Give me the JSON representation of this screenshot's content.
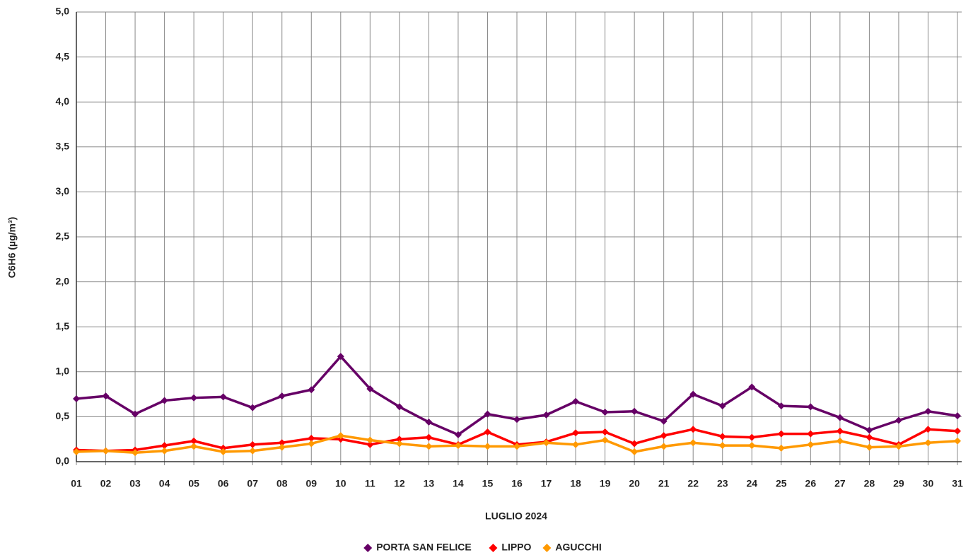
{
  "chart_data": {
    "type": "line",
    "x_label": "LUGLIO 2024",
    "y_label": "C6H6 (µg/m³)",
    "categories": [
      "01",
      "02",
      "03",
      "04",
      "05",
      "06",
      "07",
      "08",
      "09",
      "10",
      "11",
      "12",
      "13",
      "14",
      "15",
      "16",
      "17",
      "18",
      "19",
      "20",
      "21",
      "22",
      "23",
      "24",
      "25",
      "26",
      "27",
      "28",
      "29",
      "30",
      "31"
    ],
    "series": [
      {
        "name": "PORTA SAN FELICE",
        "color": "#660066",
        "values": [
          0.7,
          0.73,
          0.53,
          0.68,
          0.71,
          0.72,
          0.6,
          0.73,
          0.8,
          1.17,
          0.81,
          0.61,
          0.44,
          0.3,
          0.53,
          0.47,
          0.52,
          0.67,
          0.55,
          0.56,
          0.45,
          0.75,
          0.62,
          0.83,
          0.62,
          0.61,
          0.49,
          0.35,
          0.46,
          0.56,
          0.51
        ]
      },
      {
        "name": "LIPPO",
        "color": "#ff0000",
        "values": [
          0.13,
          0.12,
          0.13,
          0.18,
          0.23,
          0.15,
          0.19,
          0.21,
          0.26,
          0.25,
          0.19,
          0.25,
          0.27,
          0.19,
          0.33,
          0.19,
          0.22,
          0.32,
          0.33,
          0.2,
          0.29,
          0.36,
          0.28,
          0.27,
          0.31,
          0.31,
          0.34,
          0.27,
          0.19,
          0.36,
          0.34
        ]
      },
      {
        "name": "AGUCCHI",
        "color": "#ff9900",
        "values": [
          0.11,
          0.12,
          0.1,
          0.12,
          0.17,
          0.11,
          0.12,
          0.16,
          0.2,
          0.29,
          0.24,
          0.2,
          0.17,
          0.18,
          0.17,
          0.17,
          0.21,
          0.19,
          0.24,
          0.11,
          0.17,
          0.21,
          0.18,
          0.18,
          0.15,
          0.19,
          0.23,
          0.16,
          0.17,
          0.21,
          0.23
        ]
      }
    ],
    "ylim": [
      0,
      5
    ],
    "yticks": [
      {
        "value": 0,
        "label": "0,0"
      },
      {
        "value": 0.5,
        "label": "0,5"
      },
      {
        "value": 1,
        "label": "1,0"
      },
      {
        "value": 1.5,
        "label": "1,5"
      },
      {
        "value": 2,
        "label": "2,0"
      },
      {
        "value": 2.5,
        "label": "2,5"
      },
      {
        "value": 3,
        "label": "3,0"
      },
      {
        "value": 3.5,
        "label": "3,5"
      },
      {
        "value": 4,
        "label": "4,0"
      },
      {
        "value": 4.5,
        "label": "4,5"
      },
      {
        "value": 5,
        "label": "5,0"
      }
    ],
    "grid": true,
    "legend": "bottom"
  }
}
